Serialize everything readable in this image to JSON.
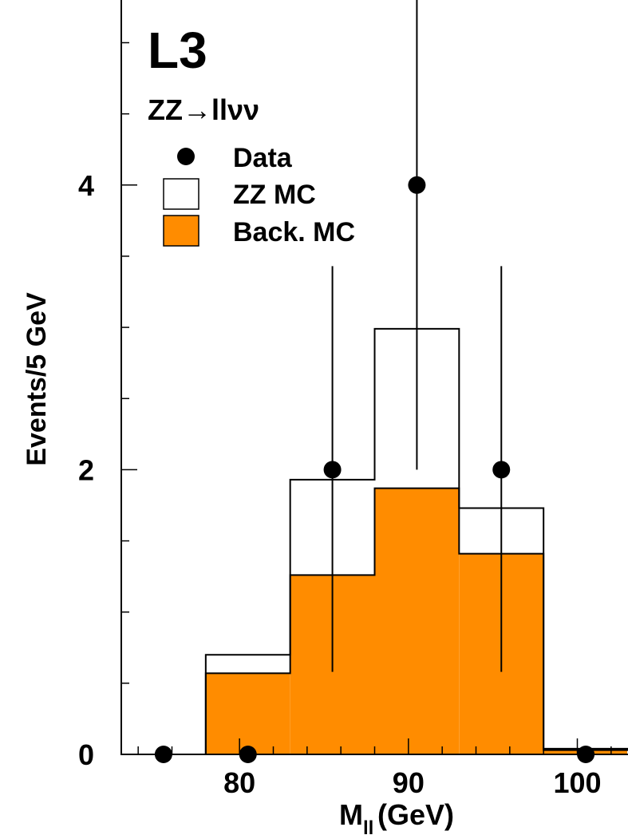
{
  "chart_data": {
    "type": "bar",
    "experiment_label": "L3",
    "process_label": "ZZ→llνν",
    "xlabel": "M",
    "xlabel_sub": "ll",
    "xlabel_unit": "(GeV)",
    "ylabel": "Events/5 GeV",
    "xlim": [
      73,
      103
    ],
    "ylim": [
      0,
      5.3
    ],
    "x_ticks": [
      80,
      90,
      100
    ],
    "y_ticks": [
      0,
      2,
      4
    ],
    "legend_position": "top-left",
    "legend": {
      "data": "Data",
      "zz": "ZZ MC",
      "back": "Back. MC"
    },
    "bin_edges": [
      73,
      78,
      83,
      88,
      93,
      98,
      103
    ],
    "series": [
      {
        "name": "ZZ MC",
        "kind": "stacked-total-outline",
        "values": [
          0,
          0.7,
          1.93,
          2.99,
          1.73,
          0.04
        ]
      },
      {
        "name": "Back. MC",
        "kind": "filled",
        "color": "#ff8c00",
        "values": [
          0,
          0.57,
          1.26,
          1.87,
          1.41,
          0.03
        ]
      }
    ],
    "data_points": [
      {
        "x": 75.5,
        "y": 0,
        "err_up": 0,
        "err_down": 0
      },
      {
        "x": 80.5,
        "y": 0,
        "err_up": 0,
        "err_down": 0
      },
      {
        "x": 85.5,
        "y": 2,
        "err_up": 1.43,
        "err_down": 1.42
      },
      {
        "x": 90.5,
        "y": 4,
        "err_up": 1.93,
        "err_down": 2.0
      },
      {
        "x": 95.5,
        "y": 2,
        "err_up": 1.43,
        "err_down": 1.42
      },
      {
        "x": 100.5,
        "y": 0,
        "err_up": 0,
        "err_down": 0
      }
    ],
    "colors": {
      "background_mc": "#ff8c00",
      "zz_mc": "#ffffff",
      "data": "#000000"
    }
  }
}
